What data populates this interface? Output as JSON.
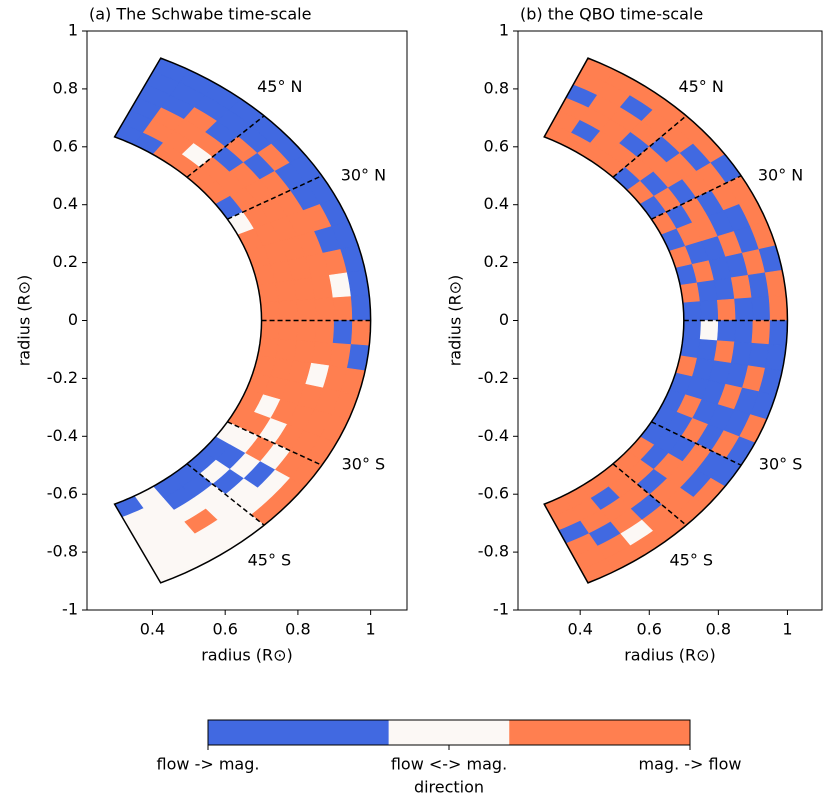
{
  "chart_data": [
    {
      "type": "sector-map",
      "title": "(a) The Schwabe time-scale",
      "xlabel": "radius (R⊙)",
      "ylabel": "radius (R⊙)",
      "xlim": [
        0.22,
        1.1
      ],
      "ylim": [
        -1,
        1
      ],
      "xticks": [
        0.4,
        0.6,
        0.8,
        1
      ],
      "yticks": [
        -1,
        -0.8,
        -0.6,
        -0.4,
        -0.2,
        0,
        0.2,
        0.4,
        0.6,
        0.8,
        1
      ],
      "r_edges": [
        0.7,
        0.75,
        0.8,
        0.85,
        0.9,
        0.95,
        1.0
      ],
      "lat_edges": [
        65,
        60,
        55,
        50,
        45,
        40,
        35,
        30,
        25,
        20,
        15,
        10,
        5,
        0,
        -5,
        -10,
        -15,
        -20,
        -25,
        -30,
        -35,
        -40,
        -45,
        -50,
        -55,
        -60,
        -65
      ],
      "latitude_lines": [
        45,
        30,
        0,
        -30,
        -45
      ],
      "annotations": [
        {
          "text": "45° N",
          "lat": 47
        },
        {
          "text": "30° N",
          "lat": 27
        },
        {
          "text": "30° S",
          "lat": -27
        },
        {
          "text": "45° S",
          "lat": -49
        }
      ],
      "values": [
        [
          -1,
          -1,
          -1,
          -1,
          -1,
          -1
        ],
        [
          -1,
          1,
          1,
          -1,
          -1,
          -1
        ],
        [
          1,
          1,
          1,
          1,
          -1,
          -1
        ],
        [
          1,
          0,
          1,
          -1,
          -1,
          -1
        ],
        [
          1,
          1,
          -1,
          1,
          -1,
          -1
        ],
        [
          1,
          1,
          1,
          -1,
          1,
          -1
        ],
        [
          -1,
          1,
          1,
          1,
          -1,
          -1
        ],
        [
          0,
          1,
          1,
          1,
          -1,
          -1
        ],
        [
          1,
          1,
          1,
          1,
          1,
          -1
        ],
        [
          1,
          1,
          1,
          1,
          -1,
          -1
        ],
        [
          1,
          1,
          1,
          1,
          1,
          -1
        ],
        [
          1,
          1,
          1,
          1,
          0,
          -1
        ],
        [
          1,
          1,
          1,
          1,
          1,
          -1
        ],
        [
          1,
          1,
          1,
          1,
          -1,
          1
        ],
        [
          1,
          1,
          1,
          1,
          1,
          -1
        ],
        [
          1,
          1,
          1,
          0,
          1,
          1
        ],
        [
          1,
          1,
          1,
          1,
          1,
          1
        ],
        [
          1,
          0,
          1,
          1,
          1,
          1
        ],
        [
          1,
          1,
          0,
          1,
          1,
          1
        ],
        [
          0,
          0,
          1,
          0,
          1,
          1
        ],
        [
          -1,
          -1,
          0,
          -1,
          0,
          1
        ],
        [
          -1,
          0,
          -1,
          0,
          0,
          1
        ],
        [
          -1,
          -1,
          0,
          0,
          0,
          0
        ],
        [
          -1,
          -1,
          0,
          1,
          0,
          0
        ],
        [
          0,
          0,
          0,
          0,
          0,
          0
        ],
        [
          -1,
          0,
          0,
          0,
          0,
          0
        ]
      ]
    },
    {
      "type": "sector-map",
      "title": "(b) the QBO time-scale",
      "xlabel": "radius (R⊙)",
      "ylabel": "radius (R⊙)",
      "xlim": [
        0.22,
        1.1
      ],
      "ylim": [
        -1,
        1
      ],
      "xticks": [
        0.4,
        0.6,
        0.8,
        1
      ],
      "yticks": [
        -1,
        -0.8,
        -0.6,
        -0.4,
        -0.2,
        0,
        0.2,
        0.4,
        0.6,
        0.8,
        1
      ],
      "r_edges": [
        0.7,
        0.75,
        0.8,
        0.85,
        0.9,
        0.95,
        1.0
      ],
      "lat_edges": [
        65,
        60,
        55,
        50,
        45,
        40,
        35,
        30,
        25,
        20,
        15,
        10,
        5,
        0,
        -5,
        -10,
        -15,
        -20,
        -25,
        -30,
        -35,
        -40,
        -45,
        -50,
        -55,
        -60,
        -65
      ],
      "latitude_lines": [
        45,
        30,
        0,
        -30,
        -45
      ],
      "annotations": [
        {
          "text": "45° N",
          "lat": 47
        },
        {
          "text": "30° N",
          "lat": 27
        },
        {
          "text": "30° S",
          "lat": -27
        },
        {
          "text": "45° S",
          "lat": -49
        }
      ],
      "values": [
        [
          1,
          1,
          1,
          -1,
          1,
          1
        ],
        [
          1,
          -1,
          1,
          1,
          1,
          1
        ],
        [
          1,
          1,
          1,
          1,
          -1,
          1
        ],
        [
          1,
          1,
          -1,
          1,
          1,
          1
        ],
        [
          -1,
          1,
          1,
          -1,
          1,
          1
        ],
        [
          1,
          -1,
          1,
          1,
          -1,
          1
        ],
        [
          -1,
          1,
          -1,
          1,
          1,
          -1
        ],
        [
          1,
          -1,
          1,
          -1,
          1,
          1
        ],
        [
          -1,
          1,
          1,
          -1,
          -1,
          1
        ],
        [
          1,
          -1,
          -1,
          1,
          -1,
          1
        ],
        [
          -1,
          1,
          -1,
          -1,
          1,
          -1
        ],
        [
          1,
          -1,
          -1,
          1,
          -1,
          1
        ],
        [
          -1,
          -1,
          1,
          -1,
          -1,
          1
        ],
        [
          -1,
          0,
          -1,
          -1,
          1,
          -1
        ],
        [
          -1,
          -1,
          1,
          -1,
          -1,
          -1
        ],
        [
          1,
          -1,
          -1,
          -1,
          1,
          -1
        ],
        [
          -1,
          -1,
          -1,
          1,
          -1,
          -1
        ],
        [
          -1,
          1,
          -1,
          -1,
          -1,
          1
        ],
        [
          -1,
          -1,
          1,
          -1,
          1,
          -1
        ],
        [
          -1,
          -1,
          -1,
          1,
          -1,
          -1
        ],
        [
          1,
          -1,
          1,
          1,
          -1,
          1
        ],
        [
          1,
          1,
          -1,
          1,
          1,
          1
        ],
        [
          1,
          1,
          1,
          -1,
          1,
          1
        ],
        [
          1,
          -1,
          1,
          1,
          0,
          1
        ],
        [
          1,
          1,
          1,
          -1,
          1,
          1
        ],
        [
          1,
          1,
          -1,
          1,
          1,
          1
        ]
      ]
    }
  ],
  "colorbar": {
    "label": "direction",
    "lim": [
      -1,
      1
    ],
    "boundaries": [
      -1,
      -0.25,
      0.25,
      1
    ],
    "colors": [
      "#4169e1",
      "#fcf8f5",
      "#ff7f50"
    ],
    "ticks": [
      {
        "value": -1,
        "label": "flow -> mag."
      },
      {
        "value": 0,
        "label": "flow <-> mag."
      },
      {
        "value": 1,
        "label": "mag. -> flow"
      }
    ]
  }
}
